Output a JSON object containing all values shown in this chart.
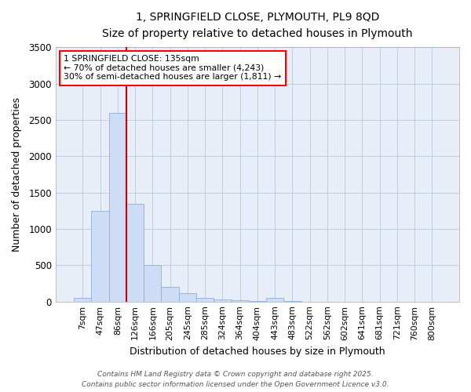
{
  "title_line1": "1, SPRINGFIELD CLOSE, PLYMOUTH, PL9 8QD",
  "title_line2": "Size of property relative to detached houses in Plymouth",
  "xlabel": "Distribution of detached houses by size in Plymouth",
  "ylabel": "Number of detached properties",
  "categories": [
    "7sqm",
    "47sqm",
    "86sqm",
    "126sqm",
    "166sqm",
    "205sqm",
    "245sqm",
    "285sqm",
    "324sqm",
    "364sqm",
    "404sqm",
    "443sqm",
    "483sqm",
    "522sqm",
    "562sqm",
    "602sqm",
    "641sqm",
    "681sqm",
    "721sqm",
    "760sqm",
    "800sqm"
  ],
  "values": [
    50,
    1250,
    2600,
    1350,
    500,
    200,
    110,
    50,
    30,
    20,
    10,
    50,
    3,
    0,
    0,
    0,
    0,
    0,
    0,
    0,
    0
  ],
  "bar_color": "#ccddf5",
  "bar_edge_color": "#8ab0d8",
  "vline_color": "#cc0000",
  "vline_index": 3,
  "ylim": [
    0,
    3500
  ],
  "yticks": [
    0,
    500,
    1000,
    1500,
    2000,
    2500,
    3000,
    3500
  ],
  "annotation_title": "1 SPRINGFIELD CLOSE: 135sqm",
  "annotation_line2": "← 70% of detached houses are smaller (4,243)",
  "annotation_line3": "30% of semi-detached houses are larger (1,811) →",
  "bg_color": "#e8eef8",
  "grid_color": "#c0cce0",
  "footer_line1": "Contains HM Land Registry data © Crown copyright and database right 2025.",
  "footer_line2": "Contains public sector information licensed under the Open Government Licence v3.0."
}
